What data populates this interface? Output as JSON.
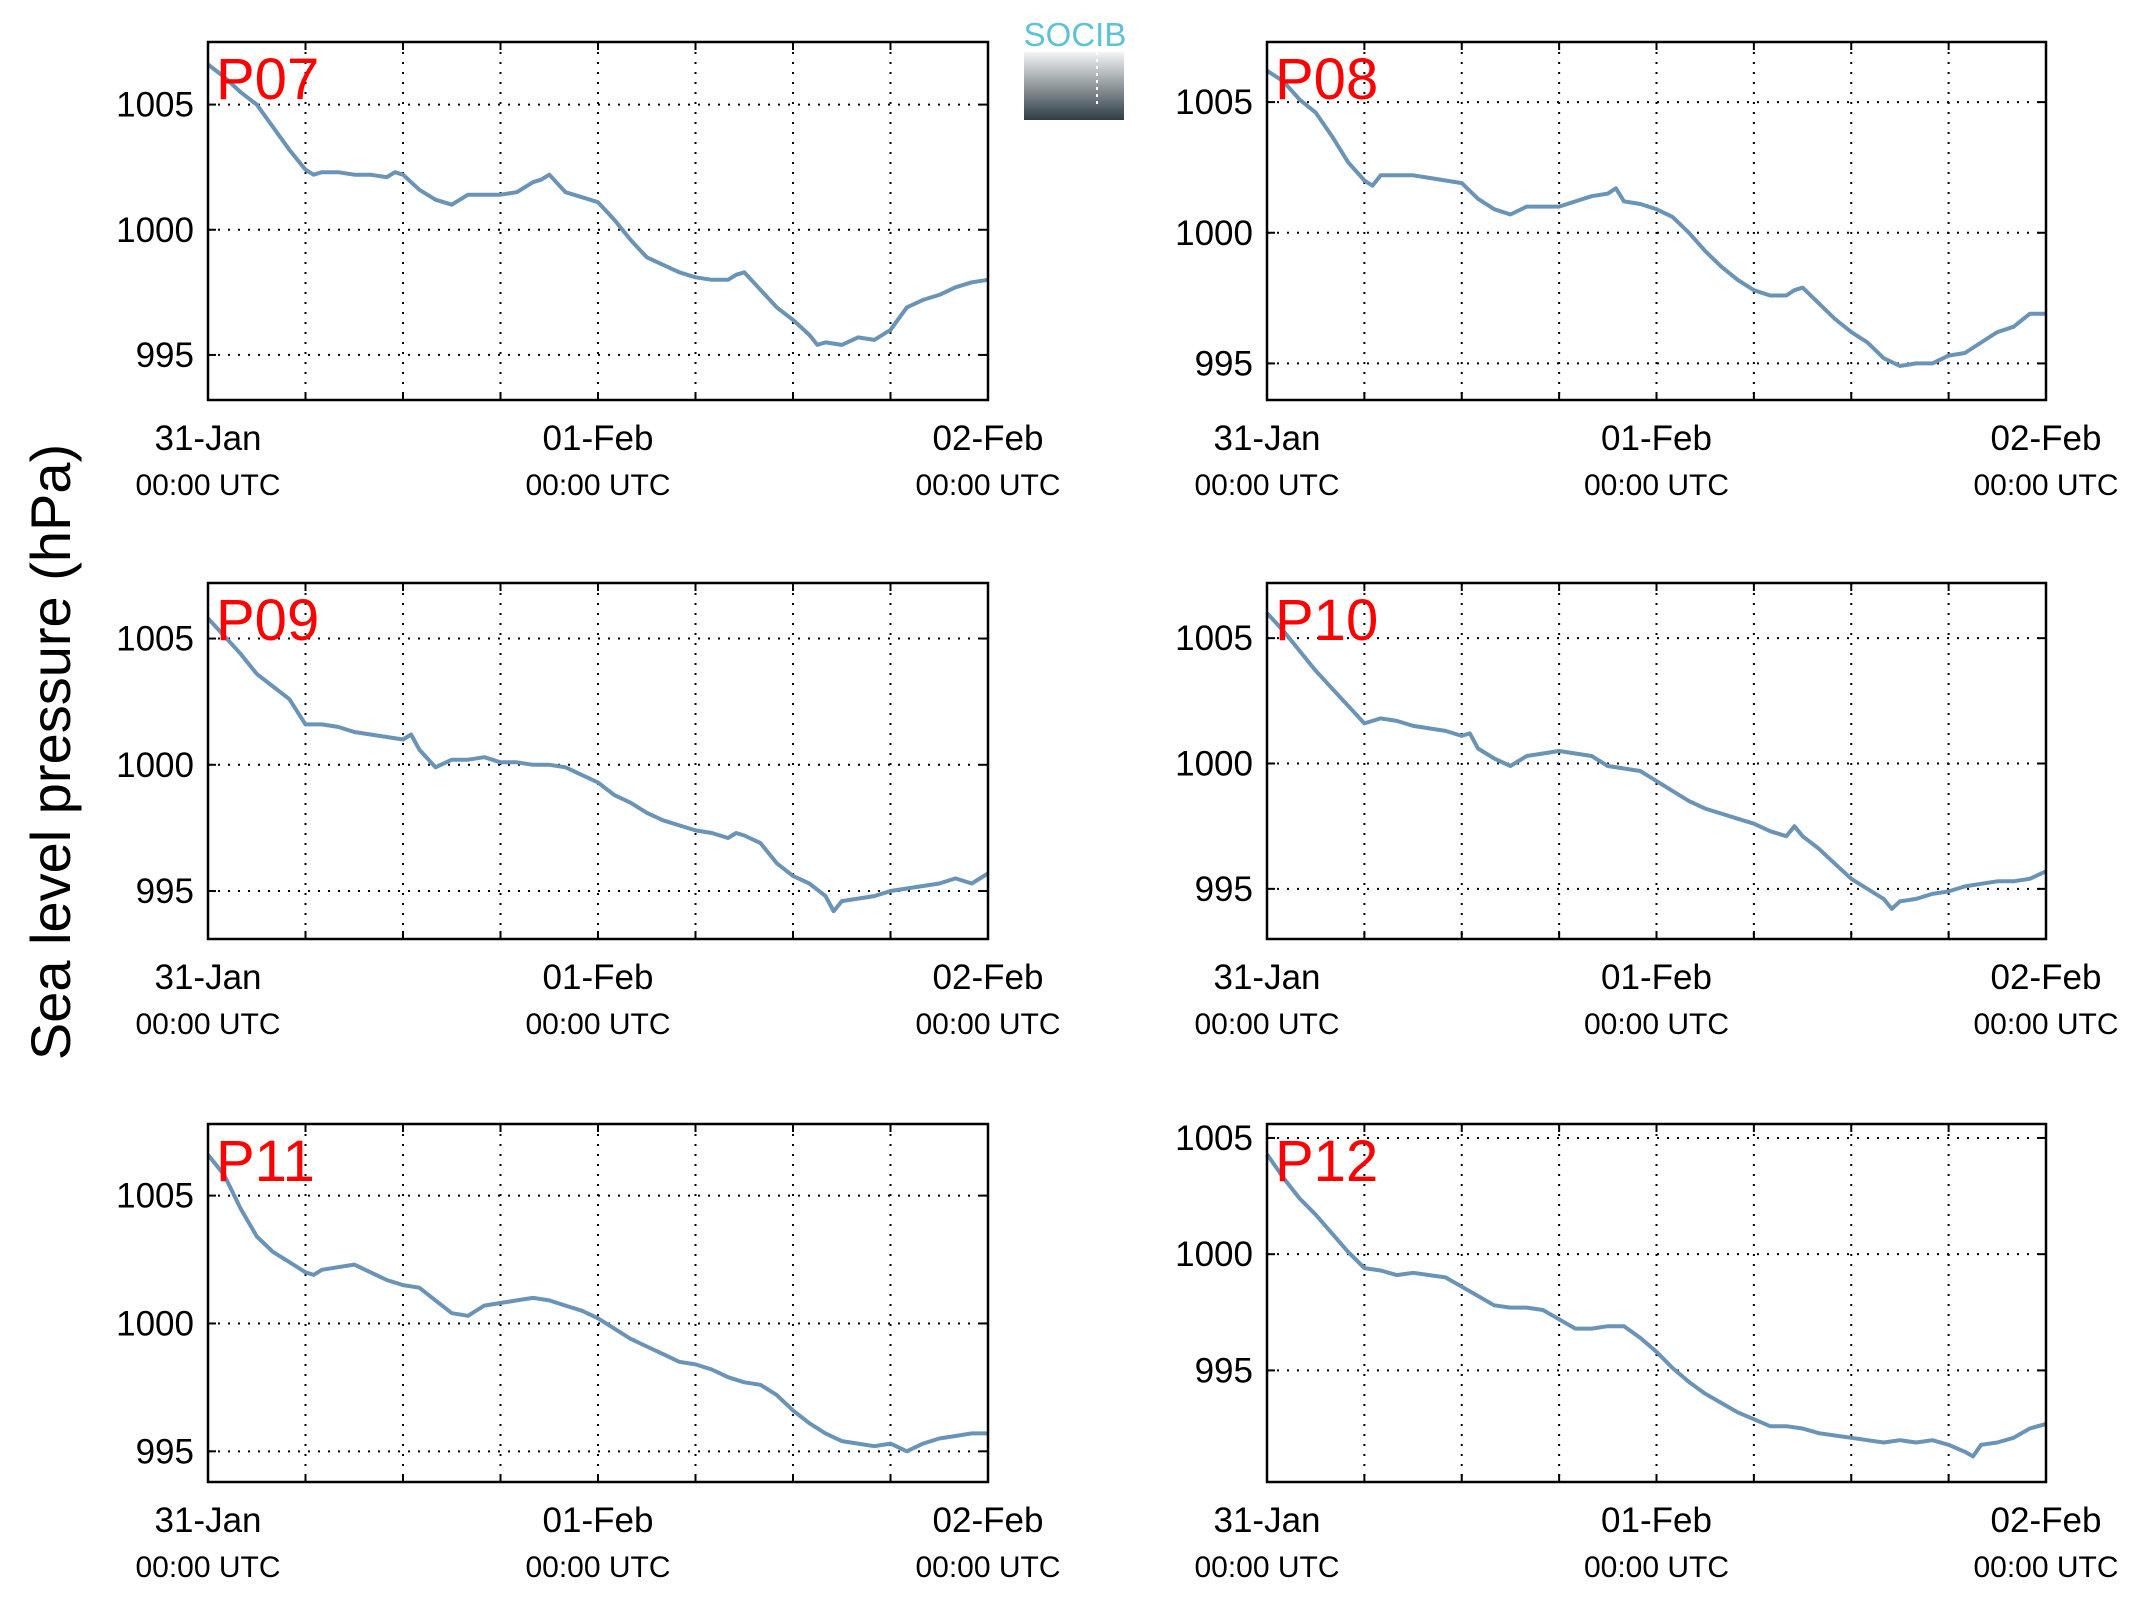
{
  "figure": {
    "ylabel": "Sea level pressure (hPa)",
    "logo_text": "SOCIB",
    "colors": {
      "line": "#6a93b8",
      "panel_label": "#ff0000",
      "logo_text": "#5ec2d6",
      "logo_dark": "#2f3d45"
    },
    "x_ticks": [
      {
        "value": 0,
        "date": "31-Jan",
        "time": "00:00 UTC"
      },
      {
        "value": 24,
        "date": "01-Feb",
        "time": "00:00 UTC"
      },
      {
        "value": 48,
        "date": "02-Feb",
        "time": "00:00 UTC"
      }
    ],
    "x_grid_hours": [
      6,
      12,
      18,
      24,
      30,
      36,
      42
    ]
  },
  "chart_data": [
    {
      "type": "line",
      "title": "P07",
      "xlim": [
        0,
        48
      ],
      "ylim": [
        993.2,
        1007.5
      ],
      "yticks": [
        995,
        1000,
        1005
      ],
      "x": [
        0,
        1,
        2,
        3,
        4,
        5,
        6,
        6.5,
        7,
        8,
        9,
        10,
        11,
        11.5,
        12,
        13,
        14,
        15,
        16,
        17,
        18,
        19,
        20,
        20.5,
        21,
        22,
        23,
        24,
        25,
        26,
        27,
        28,
        29,
        30,
        31,
        32,
        32.5,
        33,
        34,
        35,
        36,
        37,
        37.5,
        38,
        39,
        40,
        41,
        42,
        43,
        44,
        45,
        46,
        47,
        48
      ],
      "y": [
        1006.6,
        1006.1,
        1005.5,
        1005.0,
        1004.1,
        1003.2,
        1002.4,
        1002.2,
        1002.3,
        1002.3,
        1002.2,
        1002.2,
        1002.1,
        1002.3,
        1002.2,
        1001.6,
        1001.2,
        1001.0,
        1001.4,
        1001.4,
        1001.4,
        1001.5,
        1001.9,
        1002.0,
        1002.2,
        1001.5,
        1001.3,
        1001.1,
        1000.4,
        999.6,
        998.9,
        998.6,
        998.3,
        998.1,
        998.0,
        998.0,
        998.2,
        998.3,
        997.6,
        996.9,
        996.4,
        995.8,
        995.4,
        995.5,
        995.4,
        995.7,
        995.6,
        996.0,
        996.9,
        997.2,
        997.4,
        997.7,
        997.9,
        998.0
      ]
    },
    {
      "type": "line",
      "title": "P08",
      "xlim": [
        0,
        48
      ],
      "ylim": [
        993.6,
        1007.3
      ],
      "yticks": [
        995,
        1000,
        1005
      ],
      "x": [
        0,
        1,
        2,
        3,
        4,
        5,
        6,
        6.5,
        7,
        8,
        9,
        10,
        11,
        12,
        13,
        14,
        15,
        16,
        17,
        18,
        19,
        20,
        21,
        21.5,
        22,
        23,
        24,
        25,
        26,
        27,
        28,
        29,
        30,
        31,
        32,
        32.5,
        33,
        34,
        35,
        36,
        37,
        38,
        39,
        40,
        41,
        42,
        43,
        44,
        45,
        46,
        47,
        48
      ],
      "y": [
        1006.2,
        1005.8,
        1005.1,
        1004.6,
        1003.7,
        1002.7,
        1002.0,
        1001.8,
        1002.2,
        1002.2,
        1002.2,
        1002.1,
        1002.0,
        1001.9,
        1001.3,
        1000.9,
        1000.7,
        1001.0,
        1001.0,
        1001.0,
        1001.2,
        1001.4,
        1001.5,
        1001.7,
        1001.2,
        1001.1,
        1000.9,
        1000.6,
        1000.0,
        999.3,
        998.7,
        998.2,
        997.8,
        997.6,
        997.6,
        997.8,
        997.9,
        997.3,
        996.7,
        996.2,
        995.8,
        995.2,
        994.9,
        995.0,
        995.0,
        995.3,
        995.4,
        995.8,
        996.2,
        996.4,
        996.9,
        996.9
      ]
    },
    {
      "type": "line",
      "title": "P09",
      "xlim": [
        0,
        48
      ],
      "ylim": [
        993.1,
        1007.2
      ],
      "yticks": [
        995,
        1000,
        1005
      ],
      "x": [
        0,
        1,
        2,
        3,
        4,
        5,
        6,
        7,
        8,
        9,
        10,
        11,
        12,
        12.5,
        13,
        14,
        15,
        16,
        17,
        18,
        19,
        20,
        21,
        22,
        23,
        24,
        25,
        26,
        27,
        28,
        29,
        30,
        31,
        32,
        32.5,
        33,
        34,
        35,
        36,
        37,
        38,
        38.5,
        39,
        40,
        41,
        42,
        43,
        44,
        45,
        46,
        47,
        48
      ],
      "y": [
        1005.8,
        1005.1,
        1004.4,
        1003.6,
        1003.1,
        1002.6,
        1001.6,
        1001.6,
        1001.5,
        1001.3,
        1001.2,
        1001.1,
        1001.0,
        1001.2,
        1000.6,
        999.9,
        1000.2,
        1000.2,
        1000.3,
        1000.1,
        1000.1,
        1000.0,
        1000.0,
        999.9,
        999.6,
        999.3,
        998.8,
        998.5,
        998.1,
        997.8,
        997.6,
        997.4,
        997.3,
        997.1,
        997.3,
        997.2,
        996.9,
        996.1,
        995.6,
        995.3,
        994.8,
        994.2,
        994.6,
        994.7,
        994.8,
        995.0,
        995.1,
        995.2,
        995.3,
        995.5,
        995.3,
        995.7
      ]
    },
    {
      "type": "line",
      "title": "P10",
      "xlim": [
        0,
        48
      ],
      "ylim": [
        993,
        1007.2
      ],
      "yticks": [
        995,
        1000,
        1005
      ],
      "x": [
        0,
        1,
        2,
        3,
        4,
        5,
        6,
        7,
        8,
        9,
        10,
        11,
        12,
        12.5,
        13,
        14,
        15,
        16,
        17,
        18,
        19,
        20,
        21,
        22,
        23,
        24,
        25,
        26,
        27,
        28,
        29,
        30,
        31,
        32,
        32.5,
        33,
        34,
        35,
        36,
        37,
        38,
        38.5,
        39,
        40,
        41,
        42,
        43,
        44,
        45,
        46,
        47,
        48
      ],
      "y": [
        1006.0,
        1005.3,
        1004.5,
        1003.7,
        1003.0,
        1002.3,
        1001.6,
        1001.8,
        1001.7,
        1001.5,
        1001.4,
        1001.3,
        1001.1,
        1001.2,
        1000.6,
        1000.2,
        999.9,
        1000.3,
        1000.4,
        1000.5,
        1000.4,
        1000.3,
        999.9,
        999.8,
        999.7,
        999.3,
        998.9,
        998.5,
        998.2,
        998.0,
        997.8,
        997.6,
        997.3,
        997.1,
        997.5,
        997.1,
        996.6,
        996.0,
        995.4,
        995.0,
        994.6,
        994.2,
        994.5,
        994.6,
        994.8,
        994.9,
        995.1,
        995.2,
        995.3,
        995.3,
        995.4,
        995.7
      ]
    },
    {
      "type": "line",
      "title": "P11",
      "xlim": [
        0,
        48
      ],
      "ylim": [
        993.8,
        1007.8
      ],
      "yticks": [
        995,
        1000,
        1005
      ],
      "x": [
        0,
        1,
        2,
        3,
        4,
        5,
        6,
        6.5,
        7,
        8,
        9,
        10,
        11,
        12,
        13,
        14,
        15,
        16,
        17,
        18,
        19,
        20,
        21,
        22,
        23,
        24,
        25,
        26,
        27,
        28,
        29,
        30,
        31,
        32,
        33,
        34,
        35,
        36,
        37,
        38,
        39,
        40,
        41,
        42,
        43,
        44,
        45,
        46,
        47,
        48
      ],
      "y": [
        1006.6,
        1005.8,
        1004.5,
        1003.4,
        1002.8,
        1002.4,
        1002.0,
        1001.9,
        1002.1,
        1002.2,
        1002.3,
        1002.0,
        1001.7,
        1001.5,
        1001.4,
        1000.9,
        1000.4,
        1000.3,
        1000.7,
        1000.8,
        1000.9,
        1001.0,
        1000.9,
        1000.7,
        1000.5,
        1000.2,
        999.8,
        999.4,
        999.1,
        998.8,
        998.5,
        998.4,
        998.2,
        997.9,
        997.7,
        997.6,
        997.2,
        996.6,
        996.1,
        995.7,
        995.4,
        995.3,
        995.2,
        995.3,
        995.0,
        995.3,
        995.5,
        995.6,
        995.7,
        995.7
      ]
    },
    {
      "type": "line",
      "title": "P12",
      "xlim": [
        0,
        48
      ],
      "ylim": [
        990.2,
        1005.6
      ],
      "yticks": [
        995,
        1000,
        1005
      ],
      "x": [
        0,
        1,
        2,
        3,
        4,
        5,
        6,
        7,
        8,
        9,
        10,
        11,
        12,
        13,
        14,
        15,
        16,
        17,
        18,
        19,
        20,
        21,
        22,
        23,
        24,
        25,
        26,
        27,
        28,
        29,
        30,
        31,
        32,
        33,
        34,
        35,
        36,
        37,
        38,
        39,
        40,
        41,
        42,
        43,
        43.5,
        44,
        45,
        46,
        47,
        48
      ],
      "y": [
        1004.3,
        1003.3,
        1002.4,
        1001.7,
        1000.9,
        1000.1,
        999.4,
        999.3,
        999.1,
        999.2,
        999.1,
        999.0,
        998.6,
        998.2,
        997.8,
        997.7,
        997.7,
        997.6,
        997.2,
        996.8,
        996.8,
        996.9,
        996.9,
        996.4,
        995.8,
        995.1,
        994.5,
        994.0,
        993.6,
        993.2,
        992.9,
        992.6,
        992.6,
        992.5,
        992.3,
        992.2,
        992.1,
        992.0,
        991.9,
        992.0,
        991.9,
        992.0,
        991.8,
        991.5,
        991.3,
        991.8,
        991.9,
        992.1,
        992.5,
        992.7
      ]
    }
  ]
}
